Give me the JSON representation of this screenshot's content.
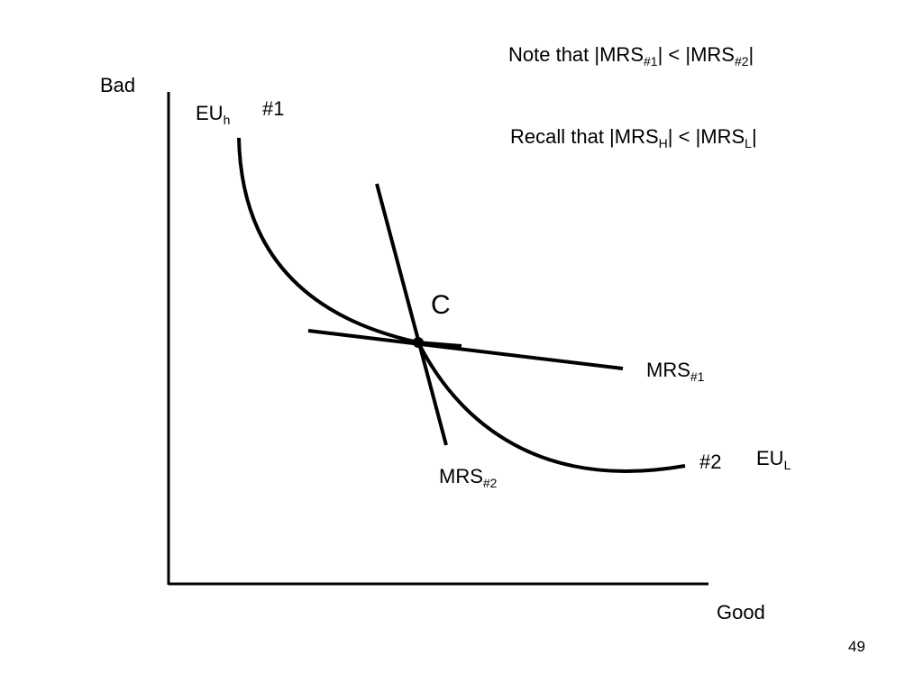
{
  "note_line": {
    "prefix": "Note that |MRS",
    "sub1": "#1",
    "middle": "| < |MRS",
    "sub2": "#2",
    "suffix": "|"
  },
  "recall_line": {
    "prefix": "Recall that |MRS",
    "sub1": "H",
    "middle": "| < |MRS",
    "sub2": "L",
    "suffix": "|"
  },
  "axes": {
    "y_label": "Bad",
    "x_label": "Good"
  },
  "curves": {
    "eu_h": {
      "main": "EU",
      "sub": "h"
    },
    "eu_l": {
      "main": "EU",
      "sub": "L"
    },
    "marker_1": "#1",
    "marker_2": "#2"
  },
  "tangents": {
    "mrs1": {
      "main": "MRS",
      "sub": "#1"
    },
    "mrs2": {
      "main": "MRS",
      "sub": "#2"
    }
  },
  "point": {
    "label": "C"
  },
  "page_number": "49",
  "colors": {
    "ink": "#000000",
    "background": "#ffffff"
  }
}
